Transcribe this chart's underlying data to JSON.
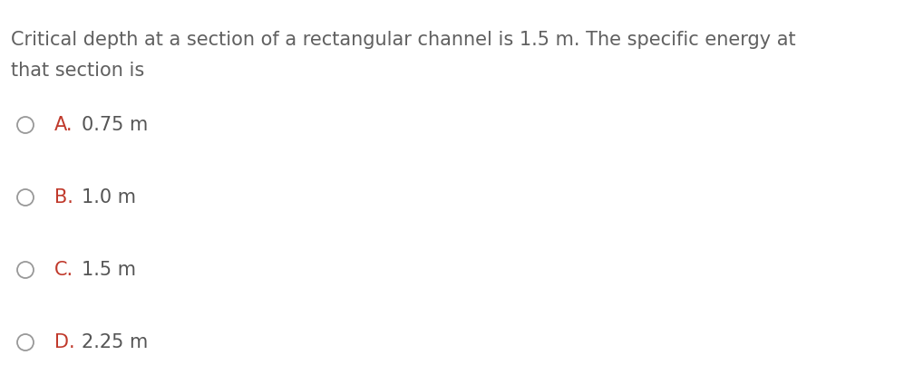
{
  "background_color": "#ffffff",
  "question_line1": "Critical depth at a section of a rectangular channel is 1.5 m. The specific energy at",
  "question_line2": "that section is",
  "options": [
    {
      "letter": "A.",
      "text": "0.75 m"
    },
    {
      "letter": "B.",
      "text": "1.0 m"
    },
    {
      "letter": "C.",
      "text": "1.5 m"
    },
    {
      "letter": "D.",
      "text": "2.25 m"
    }
  ],
  "letter_color": "#c0392b",
  "text_color": "#555555",
  "question_color": "#606060",
  "circle_color": "#999999",
  "question_fontsize": 15.0,
  "option_fontsize": 15.0,
  "fig_width": 9.97,
  "fig_height": 4.24,
  "dpi": 100
}
